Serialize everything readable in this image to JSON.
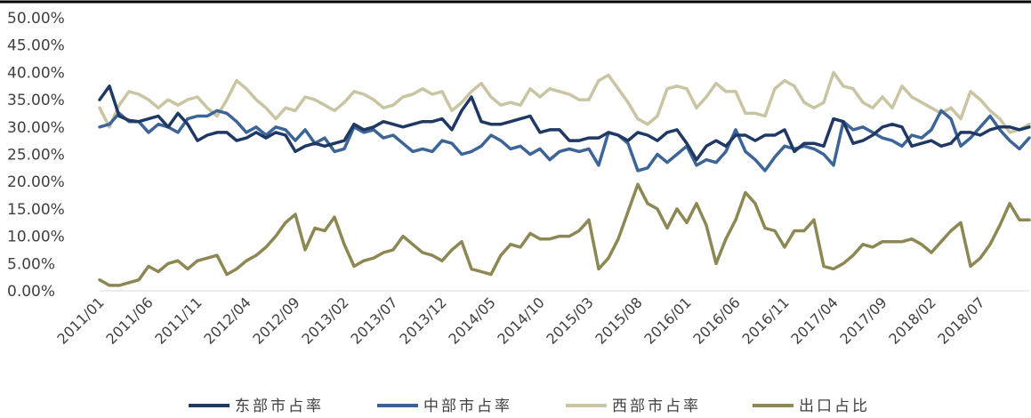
{
  "chart_data": {
    "type": "line",
    "title": "",
    "xlabel": "",
    "ylabel": "",
    "ylim": [
      0,
      50
    ],
    "y_ticks": [
      "0.00%",
      "5.00%",
      "10.00%",
      "15.00%",
      "20.00%",
      "25.00%",
      "30.00%",
      "35.00%",
      "40.00%",
      "45.00%",
      "50.00%"
    ],
    "x_tick_labels": [
      "2011/01",
      "2011/06",
      "2011/11",
      "2012/04",
      "2012/09",
      "2013/02",
      "2013/07",
      "2013/12",
      "2014/05",
      "2014/10",
      "2015/03",
      "2015/08",
      "2016/01",
      "2016/06",
      "2016/11",
      "2017/04",
      "2017/09",
      "2018/02",
      "2018/07"
    ],
    "x_start": "2011/01",
    "x_end": "2018/12",
    "grid": false,
    "legend_position": "bottom",
    "series": [
      {
        "name": "东部市占率",
        "color": "#1f3864",
        "values": [
          35.0,
          37.5,
          32.0,
          31.2,
          31.0,
          31.5,
          32.0,
          30.0,
          32.5,
          30.5,
          27.5,
          28.5,
          29.0,
          29.0,
          27.5,
          28.0,
          29.0,
          28.0,
          29.0,
          28.5,
          25.5,
          26.5,
          27.0,
          26.5,
          27.0,
          27.5,
          30.5,
          29.5,
          30.0,
          31.0,
          30.5,
          30.0,
          30.5,
          31.0,
          31.0,
          31.5,
          29.5,
          33.0,
          35.5,
          31.0,
          30.5,
          30.5,
          31.0,
          31.5,
          32.0,
          29.0,
          29.5,
          29.5,
          27.5,
          27.5,
          28.0,
          28.0,
          29.0,
          28.5,
          27.5,
          29.0,
          28.5,
          27.5,
          29.0,
          29.5,
          27.0,
          24.0,
          26.5,
          27.5,
          26.5,
          28.5,
          28.5,
          27.5,
          28.5,
          28.5,
          29.5,
          25.5,
          27.0,
          27.0,
          26.5,
          31.5,
          31.0,
          27.0,
          27.5,
          28.5,
          30.0,
          30.5,
          30.0,
          26.5,
          27.0,
          27.5,
          26.5,
          27.0,
          29.0,
          29.0,
          28.5,
          29.5,
          30.0,
          30.0,
          29.5,
          30.0
        ]
      },
      {
        "name": "中部市占率",
        "color": "#3c6496",
        "values": [
          30.0,
          30.5,
          32.5,
          31.0,
          31.0,
          29.0,
          30.5,
          30.0,
          29.0,
          31.5,
          32.0,
          32.0,
          33.0,
          32.5,
          31.0,
          29.0,
          30.0,
          28.5,
          30.0,
          29.5,
          27.5,
          29.5,
          27.0,
          28.0,
          25.5,
          26.0,
          30.0,
          29.0,
          29.5,
          28.0,
          28.5,
          27.0,
          25.5,
          26.0,
          25.5,
          27.5,
          27.0,
          25.0,
          25.5,
          26.5,
          28.5,
          27.5,
          26.0,
          26.5,
          25.0,
          26.0,
          24.0,
          25.5,
          26.0,
          25.5,
          26.0,
          23.0,
          29.0,
          28.5,
          27.0,
          22.0,
          22.5,
          25.0,
          23.5,
          25.0,
          26.5,
          23.0,
          24.0,
          23.5,
          25.5,
          29.5,
          25.5,
          24.0,
          22.0,
          24.5,
          26.5,
          26.0,
          26.5,
          26.0,
          25.0,
          23.0,
          31.0,
          29.5,
          30.0,
          29.0,
          28.0,
          27.5,
          26.5,
          28.5,
          28.0,
          29.5,
          33.0,
          31.5,
          26.5,
          28.0,
          30.0,
          32.0,
          29.5,
          27.5,
          26.0,
          28.0
        ]
      },
      {
        "name": "西部市占率",
        "color": "#c9c4a1",
        "values": [
          33.5,
          30.0,
          34.0,
          36.5,
          36.0,
          35.0,
          33.5,
          35.0,
          34.0,
          35.0,
          35.5,
          33.5,
          32.0,
          35.0,
          38.5,
          37.0,
          35.0,
          33.5,
          31.5,
          33.5,
          33.0,
          35.5,
          35.0,
          34.0,
          33.0,
          34.5,
          36.5,
          36.0,
          35.0,
          33.5,
          34.0,
          35.5,
          36.0,
          37.0,
          36.0,
          36.5,
          33.0,
          34.5,
          36.5,
          38.0,
          35.5,
          34.0,
          34.5,
          34.0,
          37.0,
          35.5,
          37.0,
          36.5,
          36.0,
          35.0,
          35.0,
          38.5,
          39.5,
          37.0,
          34.5,
          31.5,
          30.5,
          32.0,
          37.0,
          37.5,
          37.0,
          33.5,
          35.5,
          38.0,
          36.5,
          36.5,
          32.5,
          32.5,
          32.0,
          37.0,
          38.5,
          37.5,
          34.5,
          33.5,
          34.5,
          40.0,
          37.5,
          37.0,
          34.5,
          33.5,
          35.5,
          33.5,
          37.5,
          35.5,
          34.5,
          33.5,
          32.5,
          33.5,
          31.5,
          36.5,
          35.0,
          33.0,
          31.5,
          29.0,
          29.5,
          30.5
        ]
      },
      {
        "name": "出口占比",
        "color": "#8c8753",
        "values": [
          2.0,
          1.0,
          1.0,
          1.5,
          2.0,
          4.5,
          3.5,
          5.0,
          5.5,
          4.0,
          5.5,
          6.0,
          6.5,
          3.0,
          4.0,
          5.5,
          6.5,
          8.0,
          10.0,
          12.5,
          14.0,
          7.5,
          11.5,
          11.0,
          13.5,
          8.5,
          4.5,
          5.5,
          6.0,
          7.0,
          7.5,
          10.0,
          8.5,
          7.0,
          6.5,
          5.5,
          7.5,
          9.0,
          4.0,
          3.5,
          3.0,
          6.5,
          8.5,
          8.0,
          10.5,
          9.5,
          9.5,
          10.0,
          10.0,
          11.0,
          13.0,
          4.0,
          6.0,
          9.5,
          14.5,
          19.5,
          16.0,
          15.0,
          11.5,
          15.0,
          12.5,
          16.0,
          12.0,
          5.0,
          9.5,
          13.0,
          18.0,
          16.0,
          11.5,
          11.0,
          8.0,
          11.0,
          11.0,
          13.0,
          4.5,
          4.0,
          5.0,
          6.5,
          8.5,
          8.0,
          9.0,
          9.0,
          9.0,
          9.5,
          8.5,
          7.0,
          9.0,
          11.0,
          12.5,
          4.5,
          6.0,
          8.5,
          12.0,
          16.0,
          13.0,
          13.0
        ]
      }
    ]
  }
}
